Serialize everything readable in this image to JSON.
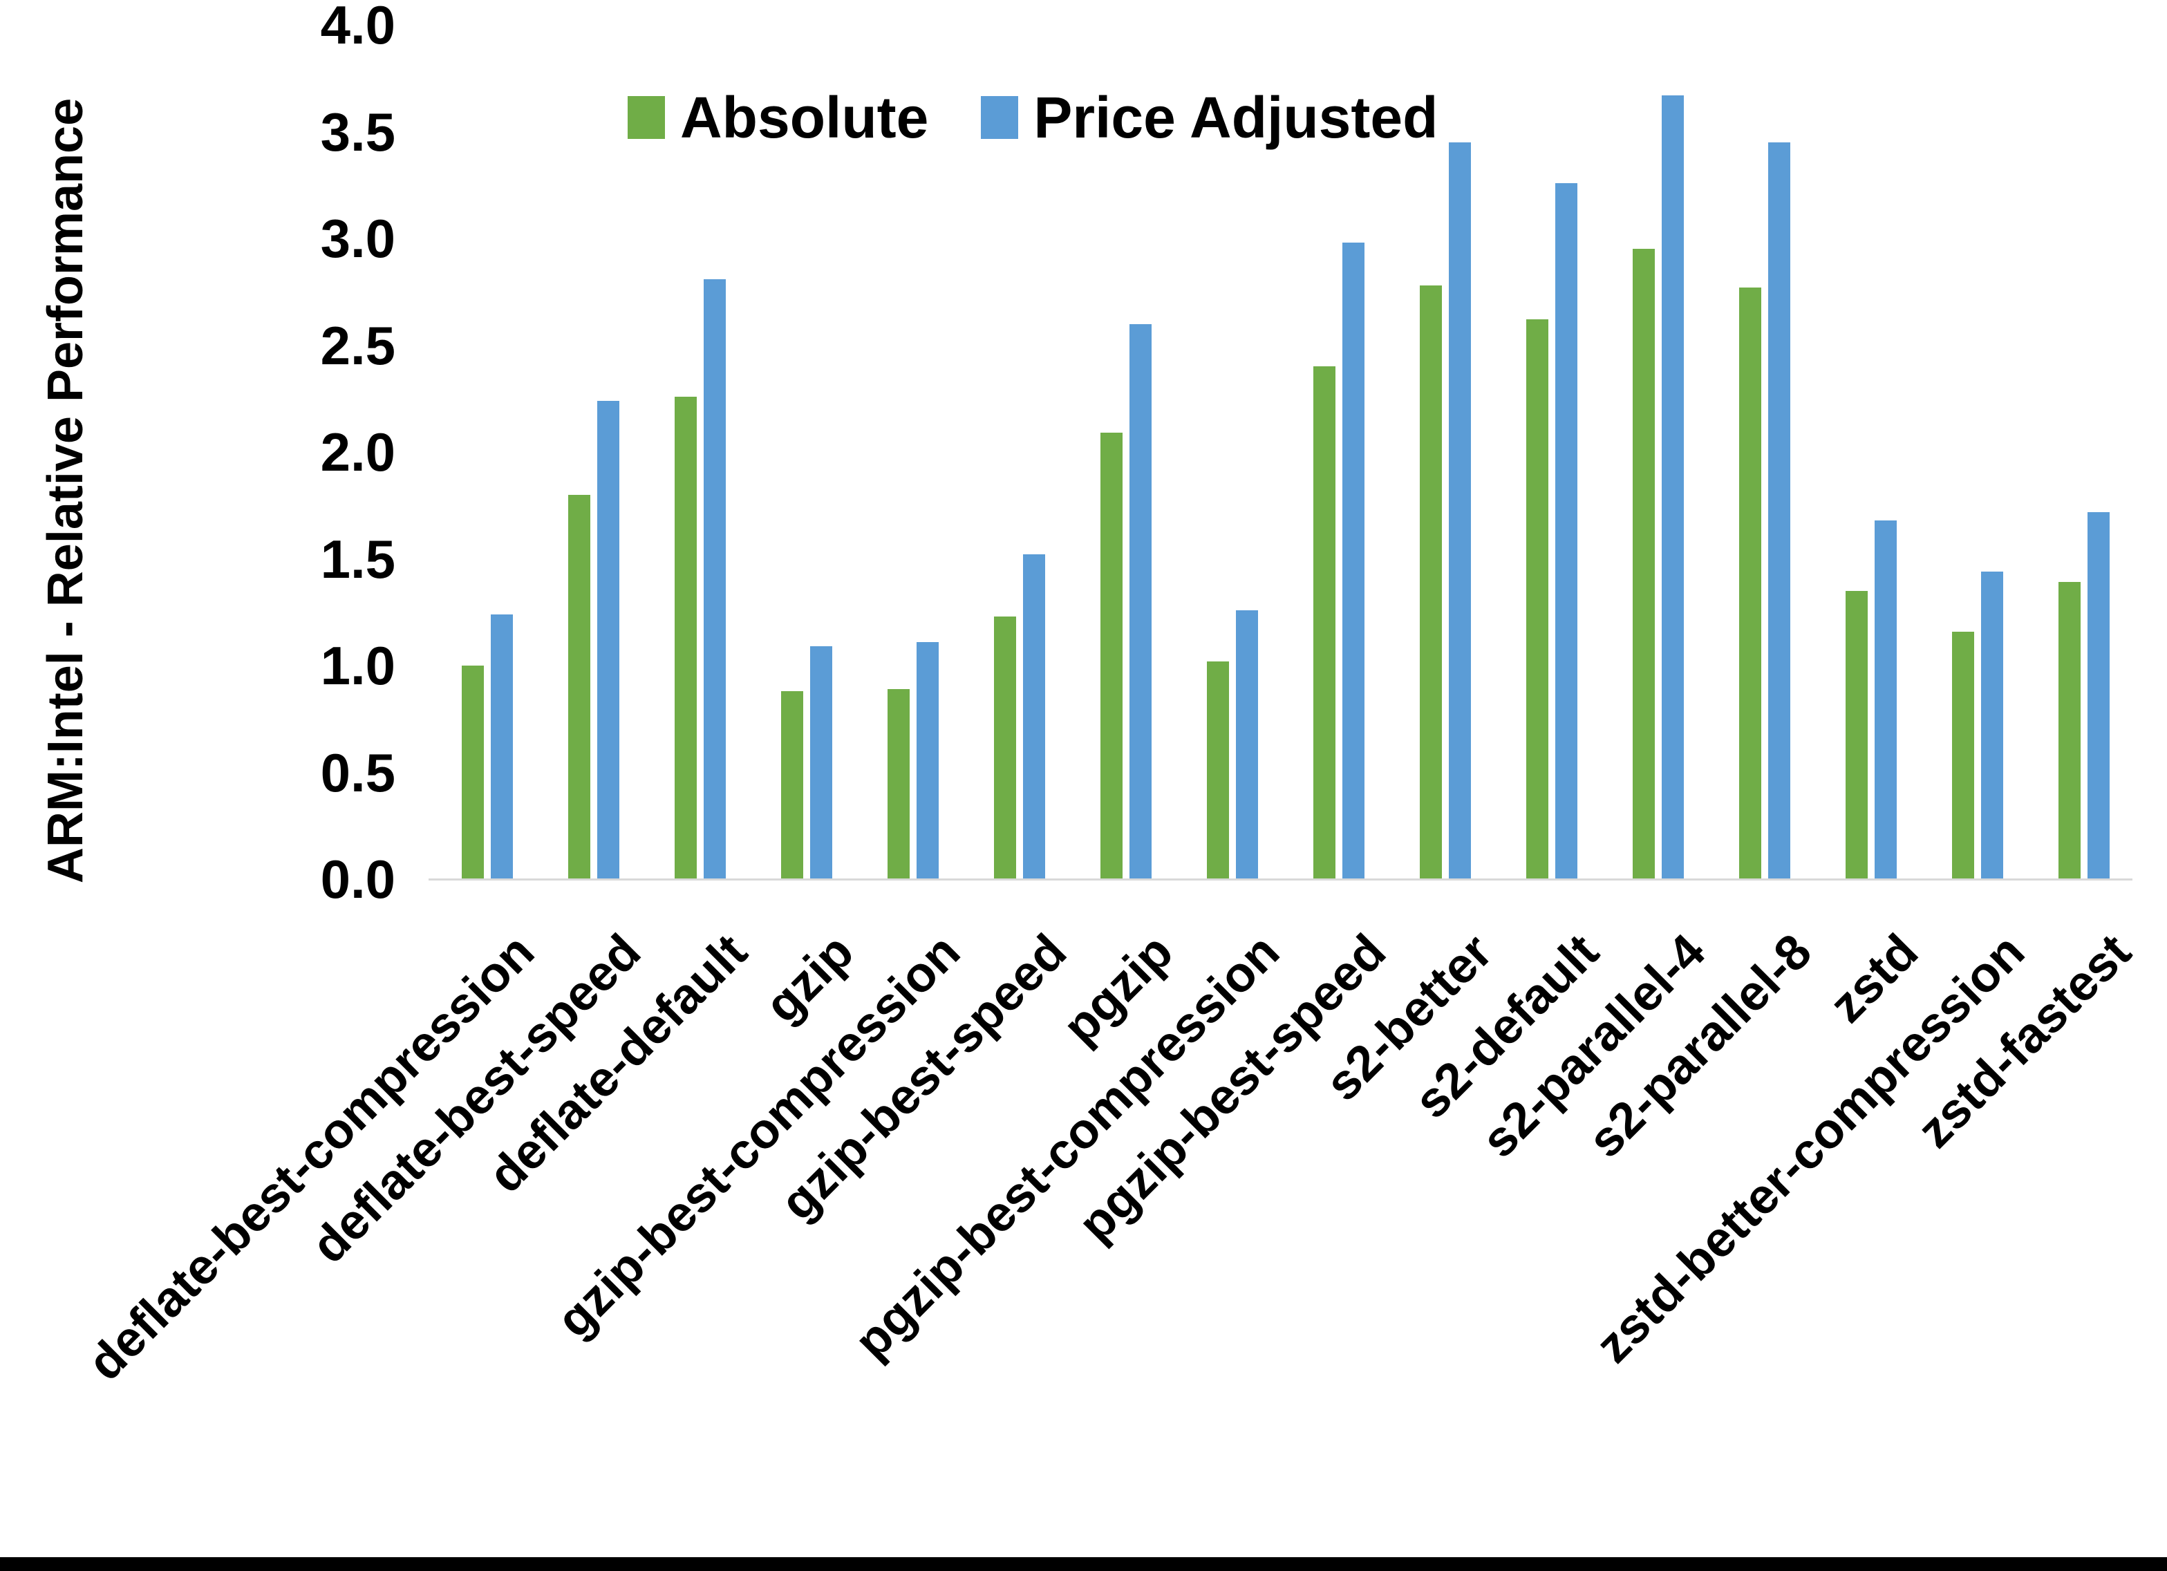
{
  "chart_data": {
    "type": "bar",
    "title": "",
    "xlabel": "",
    "ylabel": "ARM:Intel - Relative Performance",
    "ylim": [
      0.0,
      4.0
    ],
    "ytick_step": 0.5,
    "yticks": [
      "0.0",
      "0.5",
      "1.0",
      "1.5",
      "2.0",
      "2.5",
      "3.0",
      "3.5",
      "4.0"
    ],
    "grid": false,
    "legend_position": "top-center",
    "axis_line_color": "#d9d9d9",
    "text_color": "#000000",
    "background_color": "#ffffff",
    "categories": [
      "deflate-best-compression",
      "deflate-best-speed",
      "deflate-default",
      "gzip",
      "gzip-best-compression",
      "gzip-best-speed",
      "pgzip",
      "pgzip-best-compression",
      "pgzip-best-speed",
      "s2-better",
      "s2-default",
      "s2-parallel-4",
      "s2-parallel-8",
      "zstd",
      "zstd-better-compression",
      "zstd-fastest"
    ],
    "series": [
      {
        "name": "Absolute",
        "color": "#70AD47",
        "values": [
          1.0,
          1.8,
          2.26,
          0.88,
          0.89,
          1.23,
          2.09,
          1.02,
          2.4,
          2.78,
          2.62,
          2.95,
          2.77,
          1.35,
          1.16,
          1.39
        ]
      },
      {
        "name": "Price Adjusted",
        "color": "#5B9CD6",
        "values": [
          1.24,
          2.24,
          2.81,
          1.09,
          1.11,
          1.52,
          2.6,
          1.26,
          2.98,
          3.45,
          3.26,
          3.67,
          3.45,
          1.68,
          1.44,
          1.72
        ]
      }
    ]
  }
}
